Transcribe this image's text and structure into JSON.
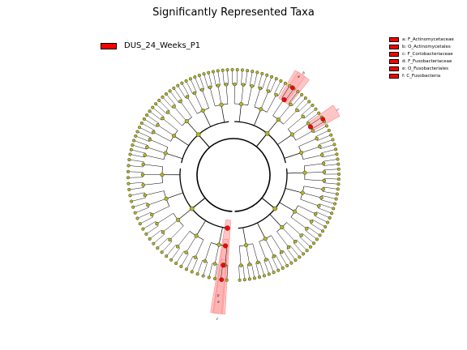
{
  "title": "Significantly Represented Taxa",
  "legend": {
    "label": "DUS_24_Weeks_P1",
    "color": "#ff0000"
  },
  "clade_legend": [
    {
      "key": "a",
      "text": "a: F_Actinomycetaceae"
    },
    {
      "key": "b",
      "text": "b: O_Actinomycetales"
    },
    {
      "key": "c",
      "text": "c: F_Coriobacteriaceae"
    },
    {
      "key": "d",
      "text": "d: F_Fusobacteriaceae"
    },
    {
      "key": "e",
      "text": "e: O_Fusobacteriales"
    },
    {
      "key": "f",
      "text": "f: C_Fusobacteria"
    }
  ],
  "highlight_labels": [
    "a",
    "b",
    "c",
    "d",
    "e",
    "f"
  ],
  "colors": {
    "node": "#b5b81a",
    "significant": "#ff0000",
    "highlight": "#ffb3b3"
  }
}
